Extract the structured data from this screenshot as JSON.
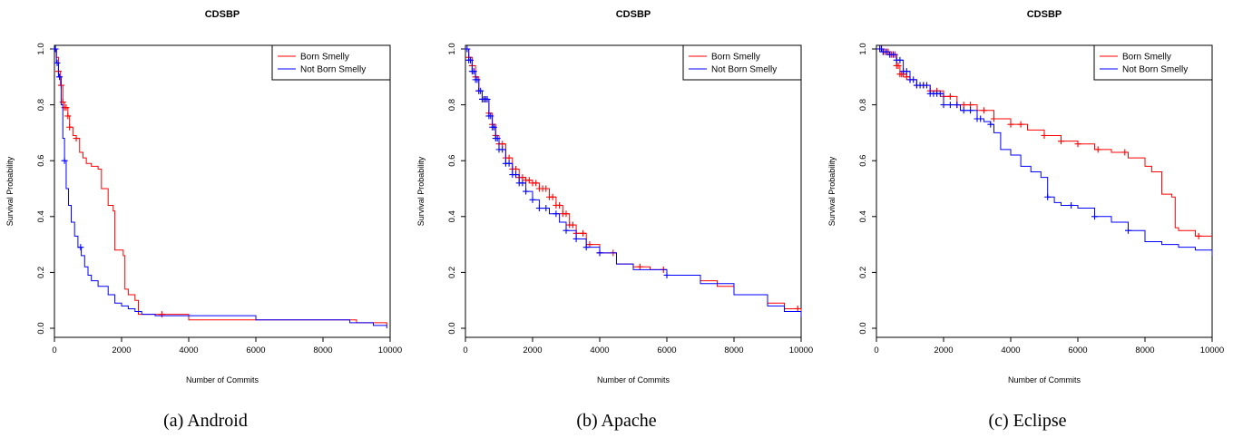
{
  "colors": {
    "born_smelly": "#ff0000",
    "not_born_smelly": "#0000ff"
  },
  "chart_data": [
    {
      "type": "line",
      "title": "CDSBP",
      "caption": "(a) Android",
      "xlabel": "Number of Commits",
      "ylabel": "Survival Probability",
      "xlim": [
        0,
        10000
      ],
      "ylim": [
        0.0,
        1.0
      ],
      "x_ticks": [
        "0",
        "2000",
        "4000",
        "6000",
        "8000",
        "10000"
      ],
      "y_ticks": [
        "0.0",
        "0.2",
        "0.4",
        "0.6",
        "0.8",
        "1.0"
      ],
      "legend_position": "top-right",
      "series": [
        {
          "name": "Born Smelly",
          "color_key": "born_smelly",
          "points": [
            [
              0,
              1.0
            ],
            [
              60,
              0.97
            ],
            [
              120,
              0.92
            ],
            [
              180,
              0.87
            ],
            [
              250,
              0.81
            ],
            [
              300,
              0.79
            ],
            [
              400,
              0.76
            ],
            [
              450,
              0.72
            ],
            [
              550,
              0.69
            ],
            [
              650,
              0.68
            ],
            [
              750,
              0.63
            ],
            [
              850,
              0.61
            ],
            [
              950,
              0.59
            ],
            [
              1100,
              0.58
            ],
            [
              1300,
              0.57
            ],
            [
              1400,
              0.5
            ],
            [
              1600,
              0.44
            ],
            [
              1750,
              0.42
            ],
            [
              1800,
              0.28
            ],
            [
              2050,
              0.26
            ],
            [
              2100,
              0.14
            ],
            [
              2200,
              0.12
            ],
            [
              2400,
              0.1
            ],
            [
              2500,
              0.05
            ],
            [
              3000,
              0.05
            ],
            [
              4000,
              0.03
            ],
            [
              9000,
              0.02
            ],
            [
              9900,
              0.01
            ]
          ],
          "censor_x": [
            120,
            200,
            250,
            300,
            350,
            400,
            450,
            650,
            3200
          ]
        },
        {
          "name": "Not Born Smelly",
          "color_key": "not_born_smelly",
          "points": [
            [
              0,
              1.0
            ],
            [
              60,
              0.95
            ],
            [
              120,
              0.9
            ],
            [
              200,
              0.8
            ],
            [
              250,
              0.68
            ],
            [
              300,
              0.6
            ],
            [
              350,
              0.5
            ],
            [
              420,
              0.44
            ],
            [
              500,
              0.38
            ],
            [
              600,
              0.33
            ],
            [
              700,
              0.29
            ],
            [
              800,
              0.26
            ],
            [
              900,
              0.22
            ],
            [
              1000,
              0.19
            ],
            [
              1100,
              0.17
            ],
            [
              1300,
              0.15
            ],
            [
              1600,
              0.12
            ],
            [
              1800,
              0.09
            ],
            [
              2000,
              0.08
            ],
            [
              2200,
              0.07
            ],
            [
              2400,
              0.06
            ],
            [
              2600,
              0.05
            ],
            [
              3000,
              0.045
            ],
            [
              6000,
              0.03
            ],
            [
              8800,
              0.02
            ],
            [
              9500,
              0.01
            ],
            [
              9900,
              0.0
            ]
          ],
          "censor_x": [
            30,
            80,
            150,
            300,
            780
          ]
        }
      ]
    },
    {
      "type": "line",
      "title": "CDSBP",
      "caption": "(b) Apache",
      "xlabel": "Number of Commits",
      "ylabel": "Survival Probability",
      "xlim": [
        0,
        10000
      ],
      "ylim": [
        0.0,
        1.0
      ],
      "x_ticks": [
        "0",
        "2000",
        "4000",
        "6000",
        "8000",
        "10000"
      ],
      "y_ticks": [
        "0.0",
        "0.2",
        "0.4",
        "0.6",
        "0.8",
        "1.0"
      ],
      "legend_position": "top-right",
      "series": [
        {
          "name": "Born Smelly",
          "color_key": "born_smelly",
          "points": [
            [
              0,
              1.0
            ],
            [
              100,
              0.97
            ],
            [
              200,
              0.94
            ],
            [
              300,
              0.9
            ],
            [
              400,
              0.85
            ],
            [
              500,
              0.82
            ],
            [
              700,
              0.77
            ],
            [
              800,
              0.73
            ],
            [
              900,
              0.69
            ],
            [
              1000,
              0.66
            ],
            [
              1200,
              0.61
            ],
            [
              1400,
              0.57
            ],
            [
              1600,
              0.54
            ],
            [
              1800,
              0.53
            ],
            [
              2000,
              0.52
            ],
            [
              2200,
              0.5
            ],
            [
              2500,
              0.47
            ],
            [
              2700,
              0.44
            ],
            [
              2900,
              0.41
            ],
            [
              3100,
              0.37
            ],
            [
              3300,
              0.34
            ],
            [
              3600,
              0.3
            ],
            [
              4000,
              0.27
            ],
            [
              4500,
              0.23
            ],
            [
              5000,
              0.22
            ],
            [
              5500,
              0.21
            ],
            [
              6000,
              0.19
            ],
            [
              7000,
              0.17
            ],
            [
              7500,
              0.15
            ],
            [
              8000,
              0.12
            ],
            [
              9000,
              0.09
            ],
            [
              9500,
              0.07
            ],
            [
              10000,
              0.06
            ]
          ],
          "censor_x": [
            100,
            200,
            300,
            400,
            500,
            600,
            700,
            800,
            900,
            1000,
            1100,
            1200,
            1300,
            1400,
            1500,
            1600,
            1700,
            1800,
            1900,
            2000,
            2100,
            2200,
            2300,
            2400,
            2500,
            2600,
            2700,
            2800,
            2900,
            3000,
            3100,
            3200,
            3300,
            3500,
            3700,
            4000,
            4400,
            5200,
            5900,
            9900
          ]
        },
        {
          "name": "Not Born Smelly",
          "color_key": "not_born_smelly",
          "points": [
            [
              0,
              1.0
            ],
            [
              100,
              0.96
            ],
            [
              200,
              0.92
            ],
            [
              300,
              0.89
            ],
            [
              400,
              0.85
            ],
            [
              500,
              0.82
            ],
            [
              700,
              0.76
            ],
            [
              800,
              0.72
            ],
            [
              900,
              0.68
            ],
            [
              1000,
              0.64
            ],
            [
              1200,
              0.59
            ],
            [
              1400,
              0.55
            ],
            [
              1600,
              0.52
            ],
            [
              1800,
              0.49
            ],
            [
              2000,
              0.46
            ],
            [
              2200,
              0.43
            ],
            [
              2500,
              0.41
            ],
            [
              2800,
              0.38
            ],
            [
              3000,
              0.35
            ],
            [
              3300,
              0.32
            ],
            [
              3600,
              0.29
            ],
            [
              4000,
              0.27
            ],
            [
              4500,
              0.23
            ],
            [
              5000,
              0.21
            ],
            [
              6000,
              0.19
            ],
            [
              7000,
              0.16
            ],
            [
              8000,
              0.12
            ],
            [
              9000,
              0.08
            ],
            [
              9500,
              0.06
            ],
            [
              10000,
              0.04
            ]
          ],
          "censor_x": [
            50,
            100,
            150,
            200,
            250,
            300,
            350,
            400,
            450,
            500,
            550,
            600,
            650,
            700,
            750,
            800,
            850,
            900,
            950,
            1000,
            1100,
            1200,
            1300,
            1400,
            1500,
            1600,
            1700,
            1800,
            2000,
            2200,
            2400,
            2700,
            3000,
            3300,
            3600,
            4000,
            6000
          ]
        }
      ]
    },
    {
      "type": "line",
      "title": "CDSBP",
      "caption": "(c) Eclipse",
      "xlabel": "Number of Commits",
      "ylabel": "Survival Probability",
      "xlim": [
        0,
        10000
      ],
      "ylim": [
        0.0,
        1.0
      ],
      "x_ticks": [
        "0",
        "2000",
        "4000",
        "6000",
        "8000",
        "10000"
      ],
      "y_ticks": [
        "0.0",
        "0.2",
        "0.4",
        "0.6",
        "0.8",
        "1.0"
      ],
      "legend_position": "top-right",
      "series": [
        {
          "name": "Born Smelly",
          "color_key": "born_smelly",
          "points": [
            [
              0,
              1.0
            ],
            [
              200,
              0.99
            ],
            [
              400,
              0.98
            ],
            [
              600,
              0.94
            ],
            [
              700,
              0.91
            ],
            [
              900,
              0.9
            ],
            [
              1000,
              0.89
            ],
            [
              1200,
              0.87
            ],
            [
              1600,
              0.85
            ],
            [
              2000,
              0.83
            ],
            [
              2400,
              0.8
            ],
            [
              3000,
              0.78
            ],
            [
              3500,
              0.75
            ],
            [
              4000,
              0.73
            ],
            [
              4500,
              0.71
            ],
            [
              5000,
              0.69
            ],
            [
              5500,
              0.67
            ],
            [
              6000,
              0.66
            ],
            [
              6500,
              0.64
            ],
            [
              7000,
              0.63
            ],
            [
              7500,
              0.61
            ],
            [
              8000,
              0.58
            ],
            [
              8200,
              0.56
            ],
            [
              8500,
              0.48
            ],
            [
              8800,
              0.47
            ],
            [
              8900,
              0.36
            ],
            [
              9000,
              0.35
            ],
            [
              9500,
              0.33
            ],
            [
              10000,
              0.33
            ]
          ],
          "censor_x": [
            100,
            150,
            200,
            250,
            300,
            350,
            400,
            450,
            500,
            550,
            600,
            650,
            700,
            750,
            800,
            900,
            1000,
            1200,
            1400,
            1600,
            1800,
            2000,
            2200,
            2400,
            2600,
            2800,
            3200,
            3500,
            4000,
            4300,
            5000,
            5500,
            6000,
            6600,
            7400,
            9600
          ]
        },
        {
          "name": "Not Born Smelly",
          "color_key": "not_born_smelly",
          "points": [
            [
              0,
              1.0
            ],
            [
              200,
              0.99
            ],
            [
              400,
              0.98
            ],
            [
              600,
              0.96
            ],
            [
              800,
              0.92
            ],
            [
              1000,
              0.89
            ],
            [
              1200,
              0.87
            ],
            [
              1600,
              0.84
            ],
            [
              2000,
              0.8
            ],
            [
              2500,
              0.78
            ],
            [
              3000,
              0.75
            ],
            [
              3200,
              0.74
            ],
            [
              3400,
              0.73
            ],
            [
              3500,
              0.7
            ],
            [
              3700,
              0.64
            ],
            [
              4000,
              0.62
            ],
            [
              4300,
              0.58
            ],
            [
              4600,
              0.56
            ],
            [
              4900,
              0.54
            ],
            [
              5100,
              0.47
            ],
            [
              5300,
              0.45
            ],
            [
              5500,
              0.44
            ],
            [
              6000,
              0.43
            ],
            [
              6500,
              0.4
            ],
            [
              7000,
              0.38
            ],
            [
              7500,
              0.35
            ],
            [
              8000,
              0.31
            ],
            [
              8500,
              0.3
            ],
            [
              9000,
              0.29
            ],
            [
              9500,
              0.28
            ],
            [
              10000,
              0.26
            ]
          ],
          "censor_x": [
            100,
            150,
            200,
            300,
            400,
            500,
            600,
            700,
            800,
            900,
            1000,
            1100,
            1200,
            1300,
            1400,
            1500,
            1600,
            1700,
            1800,
            1900,
            2000,
            2200,
            2400,
            2600,
            2800,
            3000,
            3100,
            3400,
            5100,
            5800,
            6500,
            7500
          ]
        }
      ]
    }
  ]
}
